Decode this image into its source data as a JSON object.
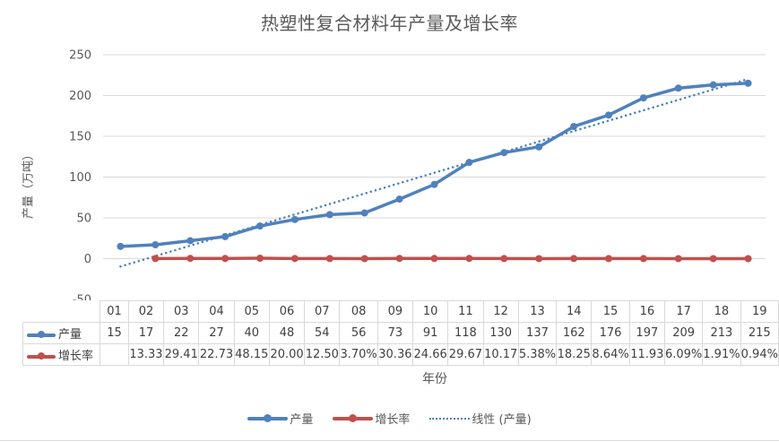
{
  "chart_data": {
    "type": "line",
    "title": "热塑性复合材料年产量及增长率",
    "xlabel": "年份",
    "ylabel": "产量（万吨）",
    "ylim": [
      -50,
      250
    ],
    "yticks": [
      250,
      200,
      150,
      100,
      50,
      0,
      -50
    ],
    "grid": true,
    "legend_position": "bottom",
    "categories": [
      "01",
      "02",
      "03",
      "04",
      "05",
      "06",
      "07",
      "08",
      "09",
      "10",
      "11",
      "12",
      "13",
      "14",
      "15",
      "16",
      "17",
      "18",
      "19"
    ],
    "series": [
      {
        "name": "产量",
        "color": "#4f81bd",
        "marker": "circle",
        "values": [
          15,
          17,
          22,
          27,
          40,
          48,
          54,
          56,
          73,
          91,
          118,
          130,
          137,
          162,
          176,
          197,
          209,
          213,
          215
        ],
        "labels": [
          "15",
          "17",
          "22",
          "27",
          "40",
          "48",
          "54",
          "56",
          "73",
          "91",
          "118",
          "130",
          "137",
          "162",
          "176",
          "197",
          "209",
          "213",
          "215"
        ]
      },
      {
        "name": "增长率",
        "color": "#c0504d",
        "marker": "circle",
        "values": [
          null,
          0.1333,
          0.2941,
          0.2273,
          0.4815,
          0.2,
          0.125,
          0.037,
          0.3036,
          0.2466,
          0.2967,
          0.1017,
          0.0538,
          0.1825,
          0.0864,
          0.1193,
          0.0609,
          0.0191,
          0.0094
        ],
        "labels": [
          "",
          "13.33",
          "29.41",
          "22.73",
          "48.15",
          "20.00",
          "12.50",
          "3.70%",
          "30.36",
          "24.66",
          "29.67",
          "10.17",
          "5.38%",
          "18.25",
          "8.64%",
          "11.93",
          "6.09%",
          "1.91%",
          "0.94%"
        ]
      }
    ],
    "trendline": {
      "name": "线性 (产量)",
      "type": "linear",
      "of_series": "产量",
      "color": "#4f81bd",
      "style": "dotted"
    },
    "data_table": true
  },
  "legend": {
    "items": [
      {
        "label": "产量",
        "kind": "line-marker",
        "color": "#4f81bd"
      },
      {
        "label": "增长率",
        "kind": "line-marker",
        "color": "#c0504d"
      },
      {
        "label": "线性 (产量)",
        "kind": "dotted",
        "color": "#4f81bd"
      }
    ]
  }
}
